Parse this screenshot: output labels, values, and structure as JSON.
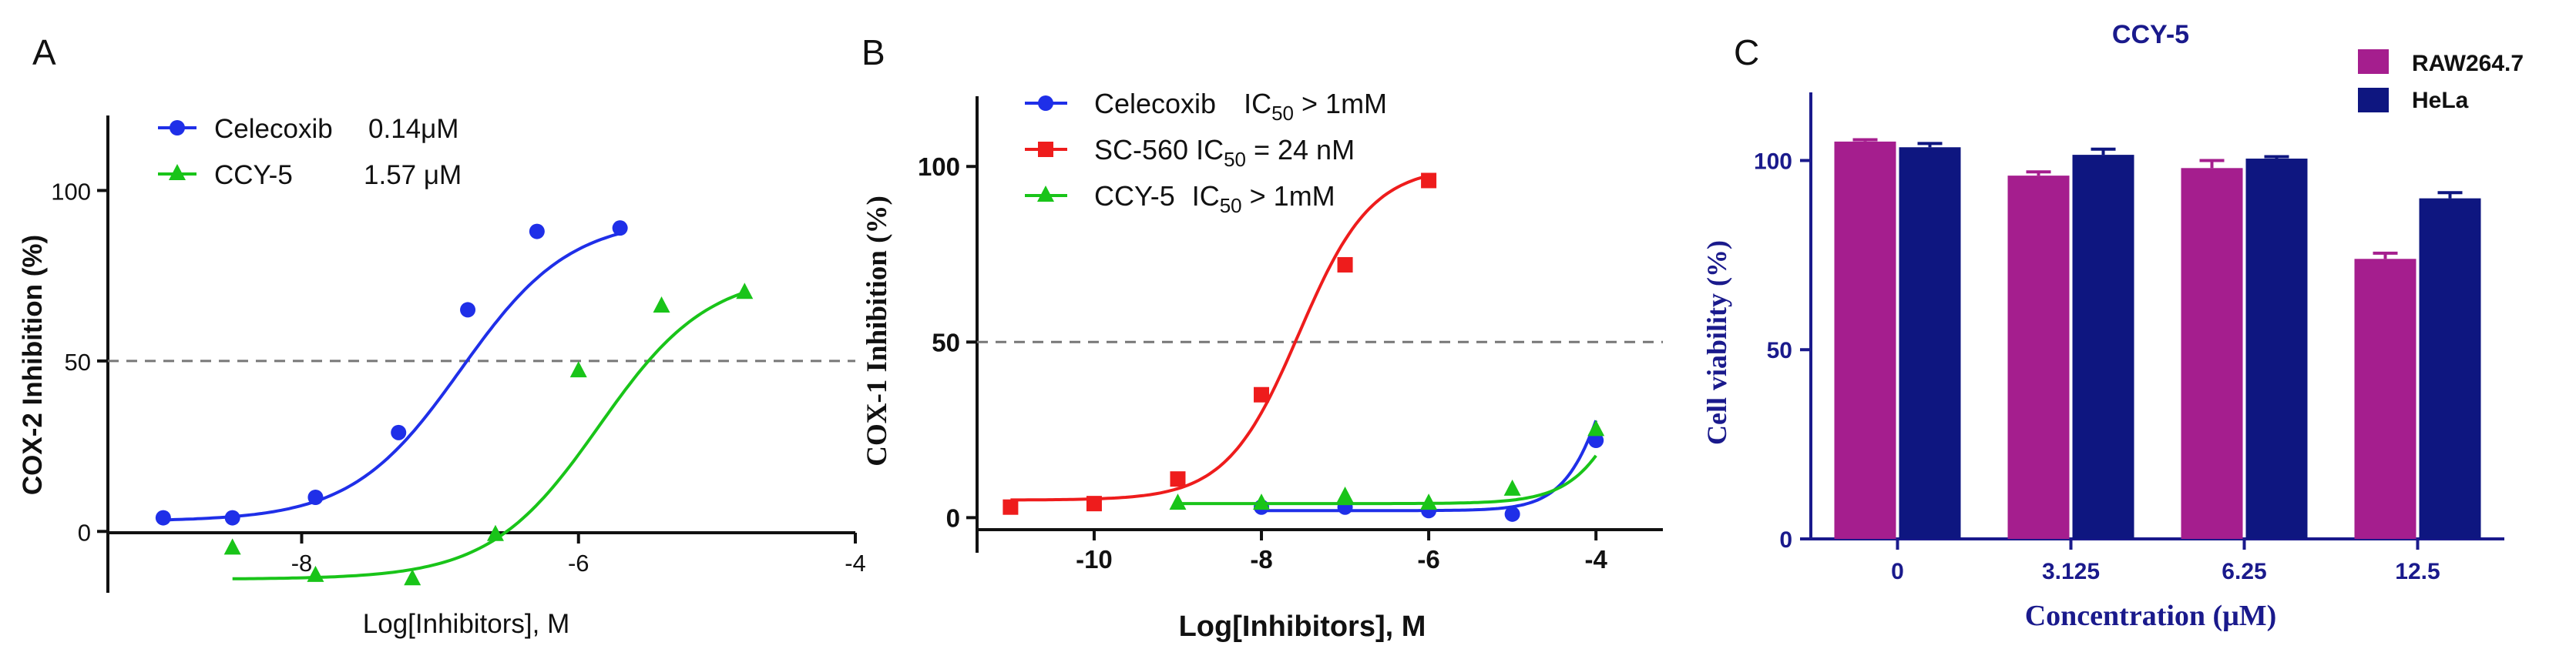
{
  "figure": {
    "panel_labels": [
      "A",
      "B",
      "C"
    ]
  },
  "chart_data": [
    {
      "panel": "A",
      "type": "line",
      "xlabel": "Log[Inhibitors], M",
      "ylabel": "COX-2 Inhibition (%)",
      "xlim": [
        -9.4,
        -4
      ],
      "ylim": [
        -18,
        122
      ],
      "xticks": [
        -8,
        -6,
        -4
      ],
      "yticks": [
        0,
        50,
        100
      ],
      "reference_line": 50,
      "legend": [
        {
          "name": "Celecoxib",
          "value": "0.14μM"
        },
        {
          "name": "CCY-5",
          "value": "1.57 μM"
        }
      ],
      "series": [
        {
          "name": "Celecoxib",
          "color": "#1f2fe8",
          "marker": "circle",
          "x": [
            -9.0,
            -8.5,
            -7.9,
            -7.3,
            -6.8,
            -6.3,
            -5.7
          ],
          "y": [
            4,
            4,
            10,
            29,
            65,
            88,
            89
          ],
          "fit": {
            "bottom": 3,
            "top": 92,
            "logec50": -6.85,
            "hill": 1.1,
            "x_range": [
              -9.0,
              -5.7
            ]
          }
        },
        {
          "name": "CCY-5",
          "color": "#19c419",
          "marker": "triangle",
          "x": [
            -8.5,
            -7.9,
            -7.2,
            -6.6,
            -6.0,
            -5.4,
            -4.8
          ],
          "y": [
            -5,
            -13,
            -14,
            -1,
            47,
            66,
            70
          ],
          "fit": {
            "bottom": -14,
            "top": 76,
            "logec50": -5.85,
            "hill": 1.1,
            "x_range": [
              -8.5,
              -4.8
            ]
          }
        }
      ]
    },
    {
      "panel": "B",
      "type": "line",
      "xlabel": "Log[Inhibitors], M",
      "ylabel": "COX-1 Inhibition (%)",
      "xlim": [
        -11.4,
        -3.2
      ],
      "ylim": [
        -10,
        120
      ],
      "xticks": [
        -10,
        -8,
        -6,
        -4
      ],
      "yticks": [
        0,
        50,
        100
      ],
      "reference_line": 50,
      "legend": [
        {
          "name": "Celecoxib",
          "label": "IC",
          "sub": "50",
          "rest": " > 1mM"
        },
        {
          "name": "SC-560",
          "label": "IC",
          "sub": "50",
          "rest": " = 24 nM"
        },
        {
          "name": "CCY-5",
          "label": "IC",
          "sub": "50",
          "rest": " > 1mM"
        }
      ],
      "series": [
        {
          "name": "Celecoxib",
          "color": "#1f2fe8",
          "marker": "circle",
          "x": [
            -8,
            -7,
            -6,
            -5,
            -4
          ],
          "y": [
            3,
            3,
            2,
            1,
            22
          ],
          "fit": {
            "bottom": 2,
            "top": 100,
            "logec50": -3.7,
            "hill": 1.5,
            "x_range": [
              -8,
              -4
            ]
          }
        },
        {
          "name": "SC-560",
          "color": "#ee1c1c",
          "marker": "square",
          "x": [
            -11,
            -10,
            -9,
            -8,
            -7,
            -6
          ],
          "y": [
            3,
            4,
            11,
            35,
            72,
            96
          ],
          "fit": {
            "bottom": 5,
            "top": 100,
            "logec50": -7.55,
            "hill": 1.0,
            "x_range": [
              -11,
              -6
            ]
          }
        },
        {
          "name": "CCY-5",
          "color": "#19c419",
          "marker": "triangle",
          "x": [
            -9,
            -8,
            -7,
            -6,
            -5,
            -4
          ],
          "y": [
            4,
            4,
            6,
            4,
            8,
            25
          ],
          "fit": {
            "bottom": 4,
            "top": 100,
            "logec50": -3.35,
            "hill": 1.2,
            "x_range": [
              -9,
              -4
            ]
          }
        }
      ]
    },
    {
      "panel": "C",
      "type": "bar",
      "title": "CCY-5",
      "xlabel": "Concentration (μM)",
      "ylabel": "Cell viability (%)",
      "ylim": [
        0,
        118
      ],
      "yticks": [
        0,
        50,
        100
      ],
      "categories": [
        "0",
        "3.125",
        "6.25",
        "12.5"
      ],
      "series": [
        {
          "name": "RAW264.7",
          "color": "#a51e8e",
          "values": [
            105,
            96,
            98,
            74
          ],
          "errors": [
            0.5,
            1.0,
            2.0,
            1.5
          ]
        },
        {
          "name": "HeLa",
          "color": "#0e1680",
          "values": [
            103.5,
            101.5,
            100.5,
            90
          ],
          "errors": [
            1.0,
            1.5,
            0.5,
            1.5
          ]
        }
      ]
    }
  ]
}
